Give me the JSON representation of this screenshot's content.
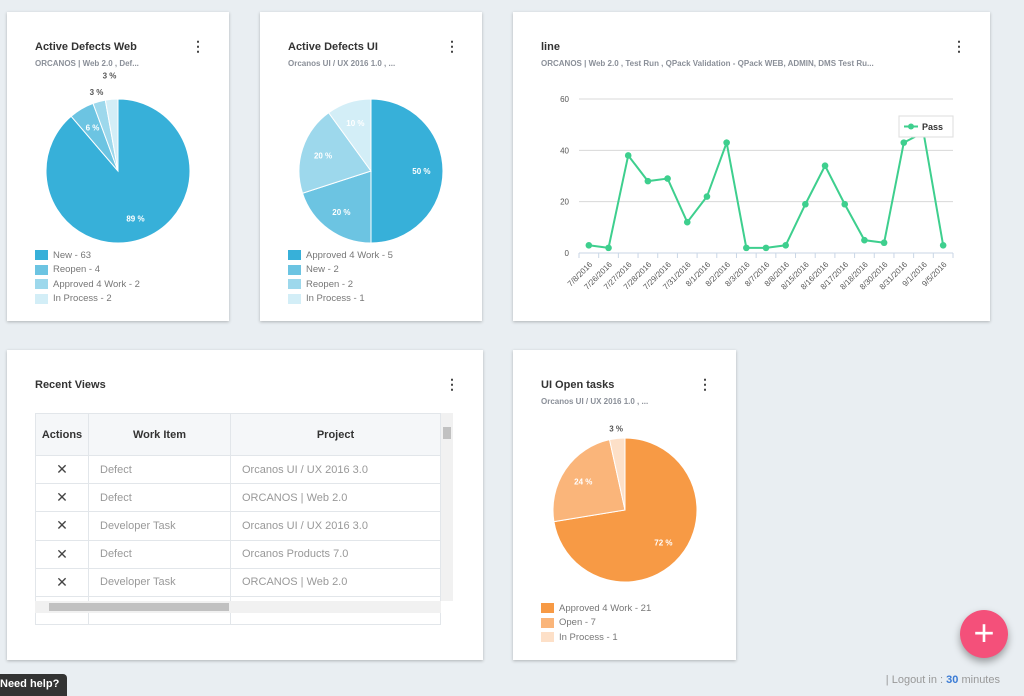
{
  "cards": {
    "web": {
      "title": "Active Defects Web",
      "subtitle": "ORCANOS | Web 2.0 , Def...",
      "legend": [
        "New - 63",
        "Reopen - 4",
        "Approved 4 Work - 2",
        "In Process - 2"
      ]
    },
    "ui": {
      "title": "Active Defects UI",
      "subtitle": "Orcanos UI / UX 2016 1.0 , ...",
      "legend": [
        "Approved 4 Work - 5",
        "New - 2",
        "Reopen - 2",
        "In Process - 1"
      ]
    },
    "line": {
      "title": "line",
      "subtitle": "ORCANOS | Web 2.0 , Test Run , QPack Validation - QPack WEB, ADMIN, DMS Test Ru..."
    },
    "recent": {
      "title": "Recent Views",
      "headers": [
        "Actions",
        "Work Item",
        "Project"
      ],
      "rows": [
        {
          "action": "✕",
          "item": "Defect",
          "project": "Orcanos UI / UX 2016 3.0"
        },
        {
          "action": "✕",
          "item": "Defect",
          "project": "ORCANOS | Web 2.0"
        },
        {
          "action": "✕",
          "item": "Developer Task",
          "project": "Orcanos UI / UX 2016 3.0"
        },
        {
          "action": "✕",
          "item": "Defect",
          "project": "Orcanos Products 7.0"
        },
        {
          "action": "✕",
          "item": "Developer Task",
          "project": "ORCANOS | Web 2.0"
        }
      ]
    },
    "tasks": {
      "title": "UI Open tasks",
      "subtitle": "Orcanos UI / UX 2016 1.0 , ...",
      "legend": [
        "Approved 4 Work - 21",
        "Open - 7",
        "In Process - 1"
      ]
    }
  },
  "menu_icon": "⋮",
  "chart_data": [
    {
      "type": "pie",
      "categories": [
        "New",
        "Reopen",
        "Approved 4 Work",
        "In Process"
      ],
      "values": [
        63,
        4,
        2,
        2
      ],
      "labels": [
        "89 %",
        "6 %",
        "3 %",
        "3 %"
      ],
      "colors": [
        "#37b0d9",
        "#6cc4e2",
        "#9dd8ec",
        "#d3eef7"
      ]
    },
    {
      "type": "pie",
      "categories": [
        "Approved 4 Work",
        "New",
        "Reopen",
        "In Process"
      ],
      "values": [
        5,
        2,
        2,
        1
      ],
      "labels": [
        "50 %",
        "20 %",
        "20 %",
        "10 %"
      ],
      "colors": [
        "#37b0d9",
        "#6cc4e2",
        "#9dd8ec",
        "#d3eef7"
      ]
    },
    {
      "type": "line",
      "categories": [
        "7/8/2016",
        "7/26/2016",
        "7/27/2016",
        "7/28/2016",
        "7/29/2016",
        "7/31/2016",
        "8/1/2016",
        "8/2/2016",
        "8/3/2016",
        "8/7/2016",
        "8/8/2016",
        "8/15/2016",
        "8/16/2016",
        "8/17/2016",
        "8/18/2016",
        "8/30/2016",
        "8/31/2016",
        "9/1/2016",
        "9/5/2016"
      ],
      "series": [
        {
          "name": "Pass",
          "values": [
            3,
            2,
            38,
            28,
            29,
            12,
            22,
            43,
            2,
            2,
            3,
            19,
            34,
            19,
            5,
            4,
            43,
            47,
            3
          ],
          "color": "#3ecf8e"
        }
      ],
      "ylim": [
        0,
        60
      ],
      "yticks": [
        "0",
        "20",
        "40",
        "60"
      ],
      "grid": true,
      "legend": "top-right"
    },
    {
      "type": "pie",
      "categories": [
        "Approved 4 Work",
        "Open",
        "In Process"
      ],
      "values": [
        21,
        7,
        1
      ],
      "labels": [
        "72 %",
        "24 %",
        "3 %"
      ],
      "colors": [
        "#f79a45",
        "#fab57a",
        "#fde0c8"
      ]
    }
  ],
  "footer": {
    "logout_prefix": "| Logout in :",
    "logout_value": "30",
    "logout_suffix": "minutes",
    "help": "Need help?",
    "fab": "+"
  }
}
